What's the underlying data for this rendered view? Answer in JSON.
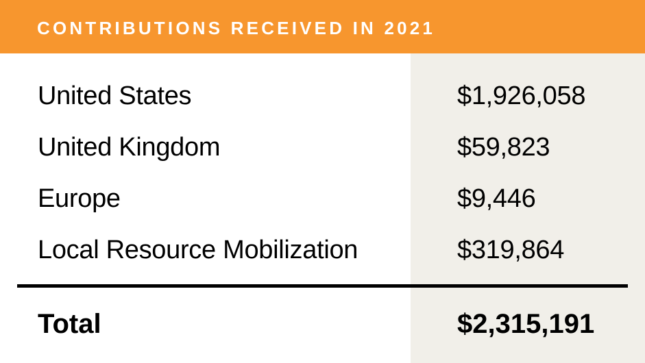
{
  "header": {
    "title": "CONTRIBUTIONS RECEIVED IN 2021"
  },
  "rows": [
    {
      "label": "United States",
      "amount": "$1,926,058"
    },
    {
      "label": "United Kingdom",
      "amount": "$59,823"
    },
    {
      "label": "Europe",
      "amount": "$9,446"
    },
    {
      "label": "Local Resource Mobilization",
      "amount": "$319,864"
    }
  ],
  "total": {
    "label": "Total",
    "amount": "$2,315,191"
  },
  "colors": {
    "header_bg": "#f7962e",
    "amount_column_bg": "#f1efe9",
    "text": "#000000"
  }
}
